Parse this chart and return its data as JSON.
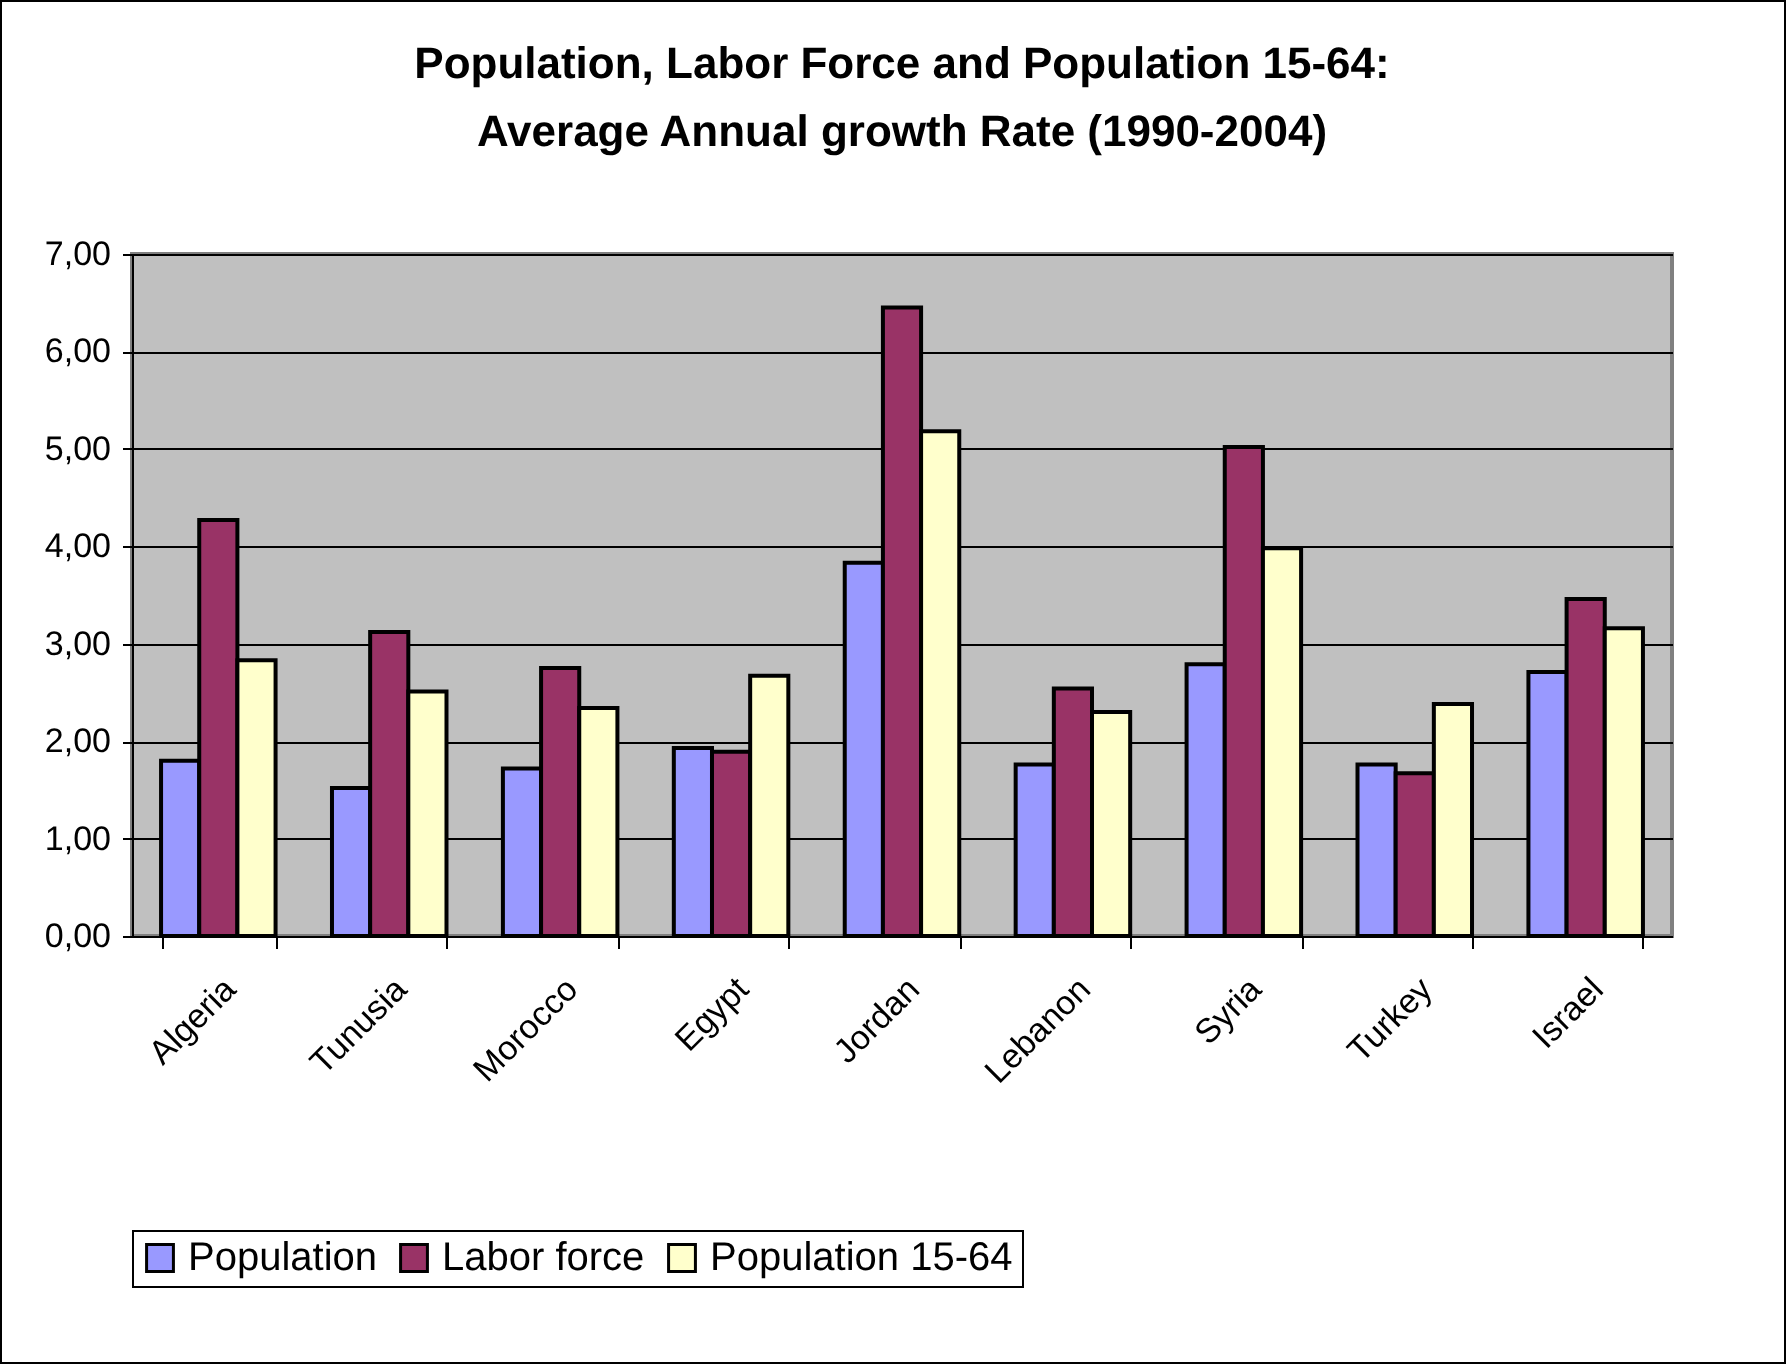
{
  "chart_data": {
    "type": "bar",
    "title": "Population, Labor Force and  Population 15-64:\nAverage Annual growth Rate (1990-2004)",
    "categories": [
      "Algeria",
      "Tunusia",
      "Morocco",
      "Egypt",
      "Jordan",
      "Lebanon",
      "Syria",
      "Turkey",
      "Israel"
    ],
    "series": [
      {
        "name": "Population",
        "color": "#9999ff",
        "values": [
          1.8,
          1.52,
          1.72,
          1.93,
          3.83,
          1.76,
          2.79,
          1.76,
          2.71
        ]
      },
      {
        "name": "Labor force",
        "color": "#993366",
        "values": [
          4.27,
          3.12,
          2.75,
          1.89,
          6.45,
          2.54,
          5.02,
          1.67,
          3.46
        ]
      },
      {
        "name": "Population 15-64",
        "color": "#ffffcc",
        "values": [
          2.83,
          2.51,
          2.34,
          2.67,
          5.18,
          2.3,
          3.98,
          2.38,
          3.16
        ]
      }
    ],
    "ylim": [
      0,
      7
    ],
    "yticks": [
      {
        "value": 0,
        "label": "0,00"
      },
      {
        "value": 1,
        "label": "1,00"
      },
      {
        "value": 2,
        "label": "2,00"
      },
      {
        "value": 3,
        "label": "3,00"
      },
      {
        "value": 4,
        "label": "4,00"
      },
      {
        "value": 5,
        "label": "5,00"
      },
      {
        "value": 6,
        "label": "6,00"
      },
      {
        "value": 7,
        "label": "7,00"
      }
    ],
    "grid": "y",
    "legend": "bottom"
  }
}
